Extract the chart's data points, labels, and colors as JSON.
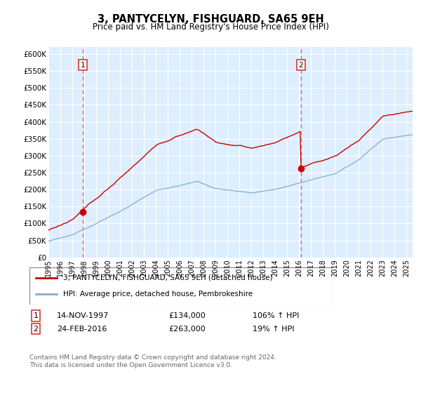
{
  "title": "3, PANTYCELYN, FISHGUARD, SA65 9EH",
  "subtitle": "Price paid vs. HM Land Registry's House Price Index (HPI)",
  "ylabel_ticks": [
    "£0",
    "£50K",
    "£100K",
    "£150K",
    "£200K",
    "£250K",
    "£300K",
    "£350K",
    "£400K",
    "£450K",
    "£500K",
    "£550K",
    "£600K"
  ],
  "ylim": [
    0,
    620000
  ],
  "xlim_start": 1995.0,
  "xlim_end": 2025.5,
  "sale1": {
    "date_num": 1997.87,
    "price": 134000,
    "label": "1",
    "date_str": "14-NOV-1997",
    "pct": "106%"
  },
  "sale2": {
    "date_num": 2016.15,
    "price": 263000,
    "label": "2",
    "date_str": "24-FEB-2016",
    "pct": "19%"
  },
  "red_color": "#cc0000",
  "blue_color": "#88aacc",
  "dashed_color": "#dd3333",
  "bg_color": "#ddeeff",
  "legend_label_red": "3, PANTYCELYN, FISHGUARD, SA65 9EH (detached house)",
  "legend_label_blue": "HPI: Average price, detached house, Pembrokeshire",
  "footer": "Contains HM Land Registry data © Crown copyright and database right 2024.\nThis data is licensed under the Open Government Licence v3.0.",
  "xticks": [
    1995,
    1996,
    1997,
    1998,
    1999,
    2000,
    2001,
    2002,
    2003,
    2004,
    2005,
    2006,
    2007,
    2008,
    2009,
    2010,
    2011,
    2012,
    2013,
    2014,
    2015,
    2016,
    2017,
    2018,
    2019,
    2020,
    2021,
    2022,
    2023,
    2024,
    2025
  ]
}
